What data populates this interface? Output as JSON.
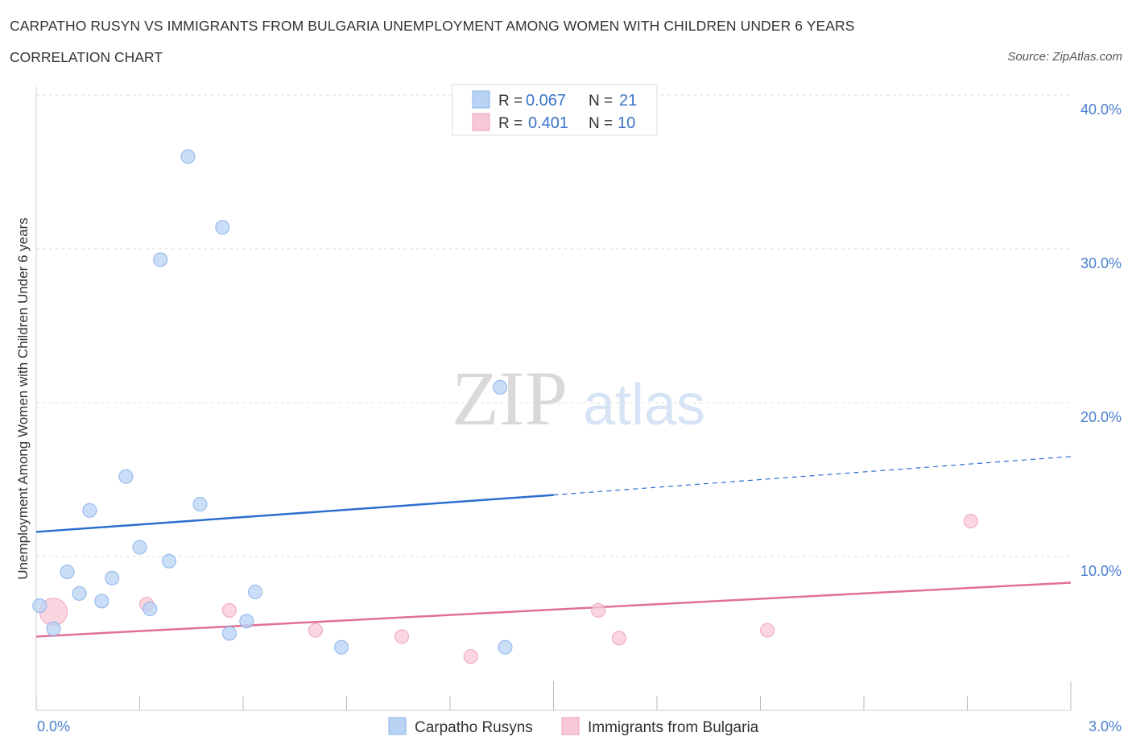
{
  "header": {
    "title": "CARPATHO RUSYN VS IMMIGRANTS FROM BULGARIA UNEMPLOYMENT AMONG WOMEN WITH CHILDREN UNDER 6 YEARS",
    "subtitle": "CORRELATION CHART",
    "source": "Source: ZipAtlas.com"
  },
  "watermark": {
    "zip": "ZIP",
    "atlas": "atlas"
  },
  "colors": {
    "blue_fill": "#b9d3f5",
    "blue_stroke": "#8db3e8",
    "blue_line": "#2a6fd0",
    "pink_fill": "#f8c8d6",
    "pink_stroke": "#eda3ba",
    "pink_line": "#e07098",
    "grid": "#dcdcdc",
    "axis_label": "#4a7fd0"
  },
  "legend": {
    "rows": [
      {
        "r_label": "R = ",
        "r_value": "0.067",
        "n_label": "N = ",
        "n_value": "21"
      },
      {
        "r_label": "R = ",
        "r_value": "0.401",
        "n_label": "N = ",
        "n_value": "10"
      }
    ]
  },
  "chart_data": {
    "type": "scatter",
    "title": "CARPATHO RUSYN VS IMMIGRANTS FROM BULGARIA UNEMPLOYMENT AMONG WOMEN WITH CHILDREN UNDER 6 YEARS",
    "xlabel": "",
    "ylabel": "Unemployment Among Women with Children Under 6 years",
    "xlim": [
      0,
      3.0
    ],
    "ylim": [
      0,
      40
    ],
    "x_tick_labels": [
      "0.0%",
      "3.0%"
    ],
    "y_ticks": [
      10,
      20,
      30,
      40
    ],
    "y_tick_labels": [
      "10.0%",
      "20.0%",
      "30.0%",
      "40.0%"
    ],
    "grid": true,
    "legend_placement": "bottom-center",
    "series": [
      {
        "name": "Carpatho Rusyns",
        "color": "#b9d3f5",
        "r": 0.067,
        "n": 21,
        "points": [
          {
            "x": 0.01,
            "y": 6.8
          },
          {
            "x": 0.05,
            "y": 5.3
          },
          {
            "x": 0.09,
            "y": 9.0
          },
          {
            "x": 0.125,
            "y": 7.6
          },
          {
            "x": 0.155,
            "y": 13.0
          },
          {
            "x": 0.19,
            "y": 7.1
          },
          {
            "x": 0.22,
            "y": 8.6
          },
          {
            "x": 0.26,
            "y": 15.2
          },
          {
            "x": 0.3,
            "y": 10.6
          },
          {
            "x": 0.33,
            "y": 6.6
          },
          {
            "x": 0.36,
            "y": 29.3
          },
          {
            "x": 0.385,
            "y": 9.7
          },
          {
            "x": 0.44,
            "y": 36.0
          },
          {
            "x": 0.475,
            "y": 13.4
          },
          {
            "x": 0.54,
            "y": 31.4
          },
          {
            "x": 0.56,
            "y": 5.0
          },
          {
            "x": 0.61,
            "y": 5.8
          },
          {
            "x": 0.635,
            "y": 7.7
          },
          {
            "x": 0.885,
            "y": 4.1
          },
          {
            "x": 1.345,
            "y": 21.0
          },
          {
            "x": 1.36,
            "y": 4.1
          }
        ],
        "trend": {
          "x0": 0,
          "y0": 11.6,
          "x1": 1.5,
          "y1": 14.0,
          "x_ext": 3.0,
          "y_ext": 16.5
        }
      },
      {
        "name": "Immigrants from Bulgaria",
        "color": "#f8c8d6",
        "r": 0.401,
        "n": 10,
        "points": [
          {
            "x": 0.05,
            "y": 6.4,
            "large": true
          },
          {
            "x": 0.32,
            "y": 6.9
          },
          {
            "x": 0.56,
            "y": 6.5
          },
          {
            "x": 0.81,
            "y": 5.2
          },
          {
            "x": 1.06,
            "y": 4.8
          },
          {
            "x": 1.26,
            "y": 3.5
          },
          {
            "x": 1.63,
            "y": 6.5
          },
          {
            "x": 1.69,
            "y": 4.7
          },
          {
            "x": 2.12,
            "y": 5.2
          },
          {
            "x": 2.71,
            "y": 12.3
          }
        ],
        "trend": {
          "x0": 0,
          "y0": 4.8,
          "x1": 3.0,
          "y1": 8.3
        }
      }
    ]
  }
}
